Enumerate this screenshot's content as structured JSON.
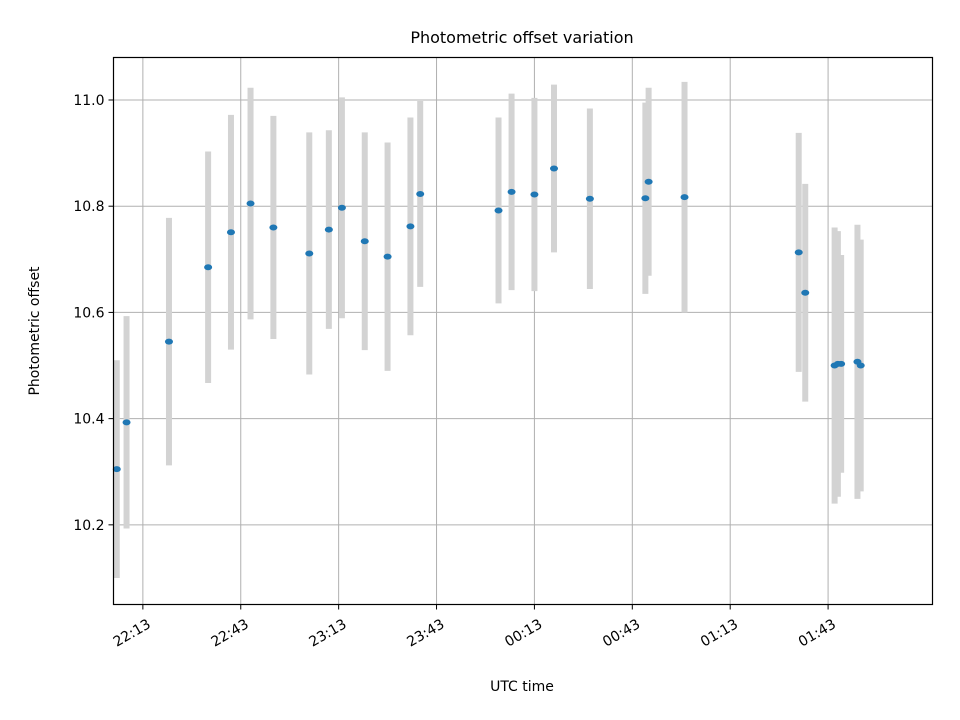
{
  "chart_data": {
    "type": "scatter",
    "title": "Photometric offset variation",
    "xlabel": "UTC time",
    "ylabel": "Photometric offset",
    "x_ticks": [
      "22:13",
      "22:43",
      "23:13",
      "23:43",
      "00:13",
      "00:43",
      "01:13",
      "01:43"
    ],
    "y_ticks": [
      "10.2",
      "10.4",
      "10.6",
      "10.8",
      "11.0"
    ],
    "xlim": [
      "22:04",
      "02:15"
    ],
    "ylim": [
      10.05,
      11.08
    ],
    "grid": true,
    "series": [
      {
        "marker_color": "#1f77b4",
        "errorbar_color": "#d3d3d3",
        "points": [
          {
            "x": "22:05",
            "y": 10.305,
            "err": 0.205
          },
          {
            "x": "22:08",
            "y": 10.393,
            "err": 0.2
          },
          {
            "x": "22:21",
            "y": 10.545,
            "err": 0.233
          },
          {
            "x": "22:33",
            "y": 10.685,
            "err": 0.218
          },
          {
            "x": "22:40",
            "y": 10.751,
            "err": 0.221
          },
          {
            "x": "22:46",
            "y": 10.805,
            "err": 0.218
          },
          {
            "x": "22:53",
            "y": 10.76,
            "err": 0.21
          },
          {
            "x": "23:04",
            "y": 10.711,
            "err": 0.228
          },
          {
            "x": "23:10",
            "y": 10.756,
            "err": 0.187
          },
          {
            "x": "23:14",
            "y": 10.797,
            "err": 0.208
          },
          {
            "x": "23:21",
            "y": 10.734,
            "err": 0.205
          },
          {
            "x": "23:28",
            "y": 10.705,
            "err": 0.215
          },
          {
            "x": "23:35",
            "y": 10.762,
            "err": 0.205
          },
          {
            "x": "23:38",
            "y": 10.823,
            "err": 0.175
          },
          {
            "x": "00:02",
            "y": 10.792,
            "err": 0.175
          },
          {
            "x": "00:06",
            "y": 10.827,
            "err": 0.185
          },
          {
            "x": "00:13",
            "y": 10.822,
            "err": 0.182
          },
          {
            "x": "00:19",
            "y": 10.871,
            "err": 0.158
          },
          {
            "x": "00:30",
            "y": 10.814,
            "err": 0.17
          },
          {
            "x": "00:47",
            "y": 10.815,
            "err": 0.18
          },
          {
            "x": "00:48",
            "y": 10.846,
            "err": 0.177
          },
          {
            "x": "00:59",
            "y": 10.817,
            "err": 0.217
          },
          {
            "x": "01:34",
            "y": 10.713,
            "err": 0.225
          },
          {
            "x": "01:36",
            "y": 10.637,
            "err": 0.205
          },
          {
            "x": "01:45",
            "y": 10.5,
            "err": 0.26
          },
          {
            "x": "01:46",
            "y": 10.503,
            "err": 0.25
          },
          {
            "x": "01:47",
            "y": 10.503,
            "err": 0.205
          },
          {
            "x": "01:52",
            "y": 10.507,
            "err": 0.258
          },
          {
            "x": "01:53",
            "y": 10.5,
            "err": 0.237
          }
        ]
      }
    ]
  }
}
